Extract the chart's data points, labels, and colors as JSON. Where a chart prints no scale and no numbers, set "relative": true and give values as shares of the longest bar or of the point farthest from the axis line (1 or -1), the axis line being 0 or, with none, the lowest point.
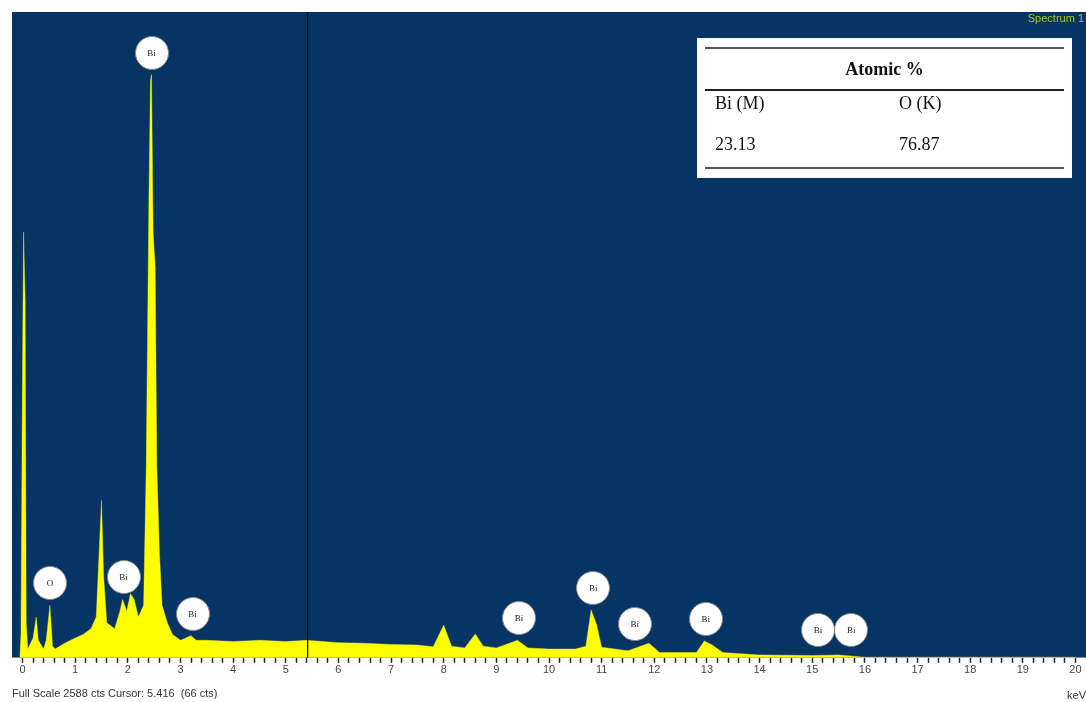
{
  "chart_data": {
    "type": "area",
    "relative": true,
    "xlabel": "keV",
    "color": "#ffff00",
    "marker": "none",
    "grid": false,
    "legend": false,
    "tick_labels": "x",
    "xlim": [
      -0.2,
      20.2
    ],
    "xticks": [
      0,
      {
        "value": 0.2,
        "label": null
      },
      {
        "value": 0.4,
        "label": null
      },
      {
        "value": 0.6,
        "label": null
      },
      {
        "value": 0.8,
        "label": null
      },
      1,
      {
        "value": 1.2,
        "label": null
      },
      {
        "value": 1.4,
        "label": null
      },
      {
        "value": 1.6,
        "label": null
      },
      {
        "value": 1.8,
        "label": null
      },
      2,
      {
        "value": 2.2,
        "label": null
      },
      {
        "value": 2.4,
        "label": null
      },
      {
        "value": 2.6,
        "label": null
      },
      {
        "value": 2.8,
        "label": null
      },
      3,
      {
        "value": 3.2,
        "label": null
      },
      {
        "value": 3.4,
        "label": null
      },
      {
        "value": 3.6,
        "label": null
      },
      {
        "value": 3.8,
        "label": null
      },
      4,
      {
        "value": 4.2,
        "label": null
      },
      {
        "value": 4.4,
        "label": null
      },
      {
        "value": 4.6,
        "label": null
      },
      {
        "value": 4.8,
        "label": null
      },
      5,
      {
        "value": 5.2,
        "label": null
      },
      {
        "value": 5.4,
        "label": null
      },
      {
        "value": 5.6,
        "label": null
      },
      {
        "value": 5.8,
        "label": null
      },
      6,
      {
        "value": 6.2,
        "label": null
      },
      {
        "value": 6.4,
        "label": null
      },
      {
        "value": 6.6,
        "label": null
      },
      {
        "value": 6.8,
        "label": null
      },
      7,
      {
        "value": 7.2,
        "label": null
      },
      {
        "value": 7.4,
        "label": null
      },
      {
        "value": 7.6,
        "label": null
      },
      {
        "value": 7.8,
        "label": null
      },
      8,
      {
        "value": 8.2,
        "label": null
      },
      {
        "value": 8.4,
        "label": null
      },
      {
        "value": 8.6,
        "label": null
      },
      {
        "value": 8.8,
        "label": null
      },
      9,
      {
        "value": 9.2,
        "label": null
      },
      {
        "value": 9.4,
        "label": null
      },
      {
        "value": 9.6,
        "label": null
      },
      {
        "value": 9.8,
        "label": null
      },
      10,
      {
        "value": 10.2,
        "label": null
      },
      {
        "value": 10.4,
        "label": null
      },
      {
        "value": 10.6,
        "label": null
      },
      {
        "value": 10.8,
        "label": null
      },
      11,
      {
        "value": 11.2,
        "label": null
      },
      {
        "value": 11.4,
        "label": null
      },
      {
        "value": 11.6,
        "label": null
      },
      {
        "value": 11.8,
        "label": null
      },
      12,
      {
        "value": 12.2,
        "label": null
      },
      {
        "value": 12.4,
        "label": null
      },
      {
        "value": 12.6,
        "label": null
      },
      {
        "value": 12.8,
        "label": null
      },
      13,
      {
        "value": 13.2,
        "label": null
      },
      {
        "value": 13.4,
        "label": null
      },
      {
        "value": 13.6,
        "label": null
      },
      {
        "value": 13.8,
        "label": null
      },
      14,
      {
        "value": 14.2,
        "label": null
      },
      {
        "value": 14.4,
        "label": null
      },
      {
        "value": 14.6,
        "label": null
      },
      {
        "value": 14.8,
        "label": null
      },
      15,
      {
        "value": 15.2,
        "label": null
      },
      {
        "value": 15.4,
        "label": null
      },
      {
        "value": 15.6,
        "label": null
      },
      {
        "value": 15.8,
        "label": null
      },
      16,
      {
        "value": 16.2,
        "label": null
      },
      {
        "value": 16.4,
        "label": null
      },
      {
        "value": 16.6,
        "label": null
      },
      {
        "value": 16.8,
        "label": null
      },
      17,
      {
        "value": 17.2,
        "label": null
      },
      {
        "value": 17.4,
        "label": null
      },
      {
        "value": 17.6,
        "label": null
      },
      {
        "value": 17.8,
        "label": null
      },
      18,
      {
        "value": 18.2,
        "label": null
      },
      {
        "value": 18.4,
        "label": null
      },
      {
        "value": 18.6,
        "label": null
      },
      {
        "value": 18.8,
        "label": null
      },
      19,
      {
        "value": 19.2,
        "label": null
      },
      {
        "value": 19.4,
        "label": null
      },
      {
        "value": 19.6,
        "label": null
      },
      {
        "value": 19.8,
        "label": null
      },
      20
    ],
    "x": [
      -0.05,
      -0.03,
      0,
      0.02,
      0.05,
      0.07,
      0.1,
      0.2,
      0.26,
      0.3,
      0.4,
      0.45,
      0.52,
      0.57,
      0.62,
      0.8,
      1,
      1.15,
      1.3,
      1.4,
      1.46,
      1.5,
      1.54,
      1.6,
      1.75,
      1.85,
      1.9,
      1.98,
      2.05,
      2.12,
      2.2,
      2.3,
      2.35,
      2.4,
      2.43,
      2.45,
      2.48,
      2.52,
      2.55,
      2.6,
      2.65,
      2.75,
      2.85,
      3,
      3.2,
      3.3,
      3.5,
      4,
      4.5,
      5,
      5.4,
      6,
      6.5,
      7,
      7.5,
      7.8,
      8,
      8.15,
      8.4,
      8.6,
      8.75,
      9,
      9.4,
      9.6,
      10,
      10.5,
      10.7,
      10.8,
      10.9,
      11,
      11.5,
      11.9,
      12.1,
      12.8,
      12.95,
      13.1,
      13.3,
      14,
      15,
      15.5,
      16,
      18,
      20
    ],
    "values": [
      0,
      0.04,
      0.5,
      0.73,
      0.61,
      0.06,
      0.015,
      0.034,
      0.07,
      0.03,
      0.015,
      0.03,
      0.09,
      0.02,
      0.015,
      0.025,
      0.034,
      0.04,
      0.05,
      0.07,
      0.19,
      0.27,
      0.14,
      0.06,
      0.05,
      0.08,
      0.1,
      0.08,
      0.11,
      0.1,
      0.07,
      0.09,
      0.33,
      0.78,
      0.99,
      1,
      0.73,
      0.67,
      0.33,
      0.18,
      0.09,
      0.06,
      0.04,
      0.03,
      0.038,
      0.03,
      0.03,
      0.028,
      0.03,
      0.028,
      0.03,
      0.026,
      0.025,
      0.023,
      0.022,
      0.019,
      0.056,
      0.02,
      0.017,
      0.041,
      0.02,
      0.017,
      0.03,
      0.017,
      0.015,
      0.015,
      0.02,
      0.082,
      0.058,
      0.018,
      0.012,
      0.025,
      0.009,
      0.009,
      0.029,
      0.022,
      0.009,
      0.005,
      0.004,
      0.005,
      0.001,
      0.001,
      0.001
    ],
    "ref_lines": [
      {
        "axis": "x",
        "value": 5.416,
        "color": "#000000"
      }
    ],
    "annotations": [
      "Spectrum 1",
      "Full Scale 2588 cts Cursor: 5.416  (66 cts)",
      "Atomic %",
      "Bi (M)",
      "O (K)",
      "23.13",
      "76.87",
      {
        "text": "O",
        "x": 0.52,
        "y": 0.09
      },
      {
        "text": "Bi",
        "x": 1.92,
        "y": 0.1
      },
      {
        "text": "Bi",
        "x": 2.45,
        "y": 1
      },
      {
        "text": "Bi",
        "x": 3.23,
        "y": 0.038
      },
      {
        "text": "Bi",
        "x": 9.43,
        "y": 0.03
      },
      {
        "text": "Bi",
        "x": 10.84,
        "y": 0.082
      },
      {
        "text": "Bi",
        "x": 11.63,
        "y": 0.02
      },
      {
        "text": "Bi",
        "x": 12.98,
        "y": 0.029
      },
      {
        "text": "Bi",
        "x": 15.11,
        "y": 0.01
      },
      {
        "text": "Bi",
        "x": 15.74,
        "y": 0.01
      }
    ]
  }
}
